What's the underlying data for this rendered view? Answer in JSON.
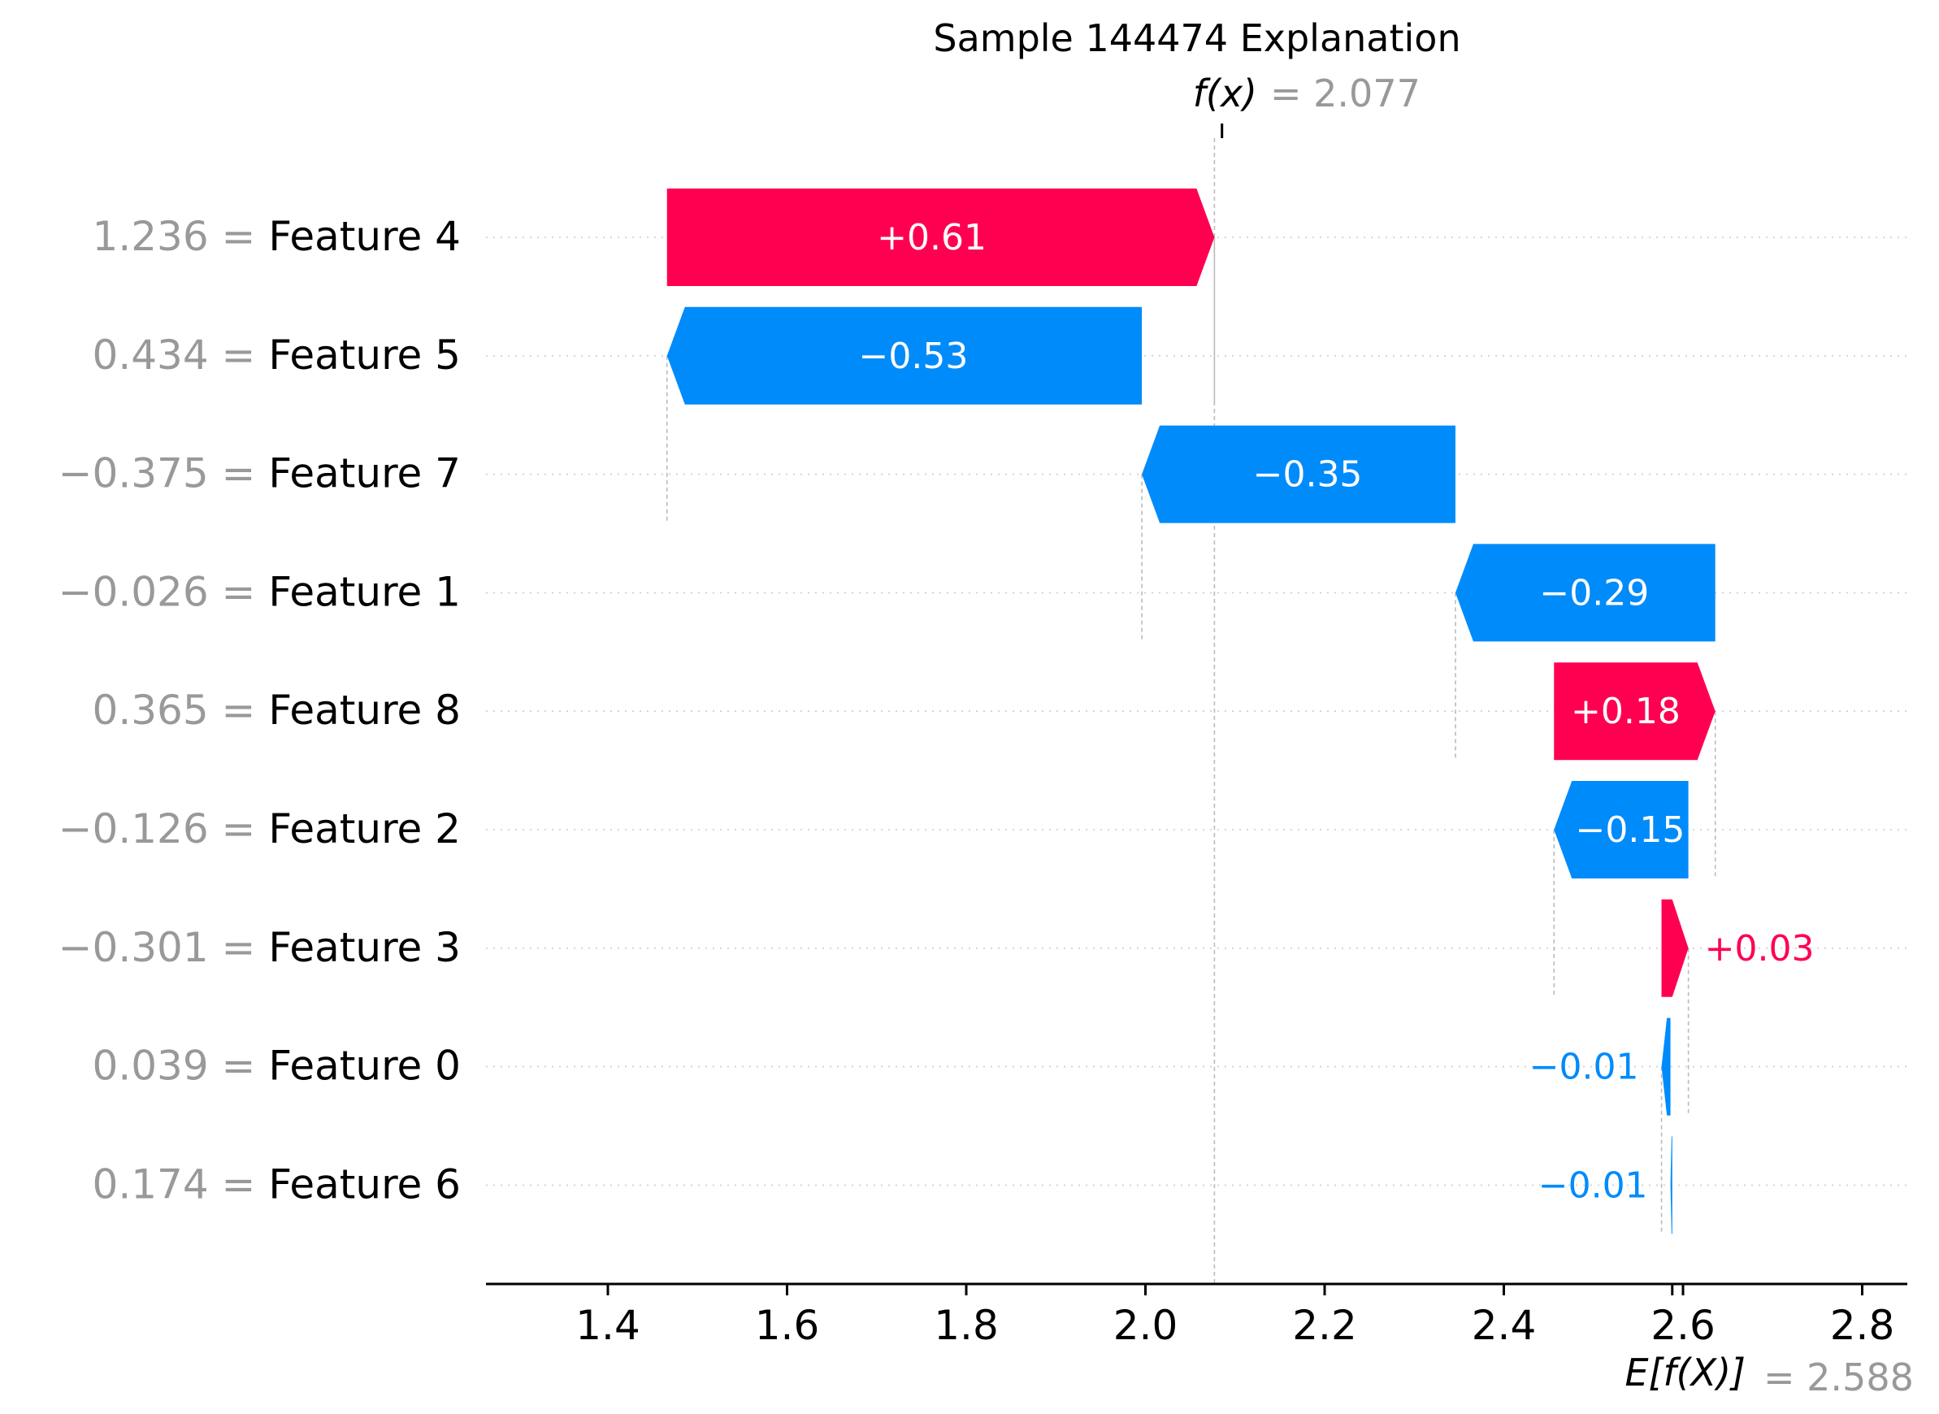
{
  "chart_data": {
    "type": "waterfall",
    "title": "Sample 144474 Explanation",
    "fx_label": "f(x)",
    "fx_value_text": "= 2.077",
    "fx_value": 2.077,
    "base_label": "E[f(X)]",
    "base_value_text": "= 2.588",
    "base_value": 2.588,
    "xlim": [
      1.26,
      2.84
    ],
    "xticks": [
      1.4,
      1.6,
      1.8,
      2.0,
      2.2,
      2.4,
      2.6,
      2.8
    ],
    "xtick_labels": [
      "1.4",
      "1.6",
      "1.8",
      "2.0",
      "2.2",
      "2.4",
      "2.6",
      "2.8"
    ],
    "grid": "horizontal dotted",
    "colors": {
      "positive": "#ff0051",
      "negative": "#008bfb",
      "value_text": "#999999",
      "axis": "#000000"
    },
    "features": [
      {
        "value_text": "1.236",
        "name": "Feature 4",
        "start": 1.466,
        "end": 2.077,
        "contribution_text": "+0.61"
      },
      {
        "value_text": "0.434",
        "name": "Feature 5",
        "start": 1.996,
        "end": 1.466,
        "contribution_text": "−0.53"
      },
      {
        "value_text": "−0.375",
        "name": "Feature 7",
        "start": 2.346,
        "end": 1.996,
        "contribution_text": "−0.35"
      },
      {
        "value_text": "−0.026",
        "name": "Feature 1",
        "start": 2.636,
        "end": 2.346,
        "contribution_text": "−0.29"
      },
      {
        "value_text": "0.365",
        "name": "Feature 8",
        "start": 2.456,
        "end": 2.636,
        "contribution_text": "+0.18"
      },
      {
        "value_text": "−0.126",
        "name": "Feature 2",
        "start": 2.606,
        "end": 2.456,
        "contribution_text": "−0.15"
      },
      {
        "value_text": "−0.301",
        "name": "Feature 3",
        "start": 2.576,
        "end": 2.606,
        "contribution_text": "+0.03"
      },
      {
        "value_text": "0.039",
        "name": "Feature 0",
        "start": 2.586,
        "end": 2.576,
        "contribution_text": "−0.01"
      },
      {
        "value_text": "0.174",
        "name": "Feature 6",
        "start": 2.588,
        "end": 2.586,
        "contribution_text": "−0.01"
      }
    ]
  }
}
